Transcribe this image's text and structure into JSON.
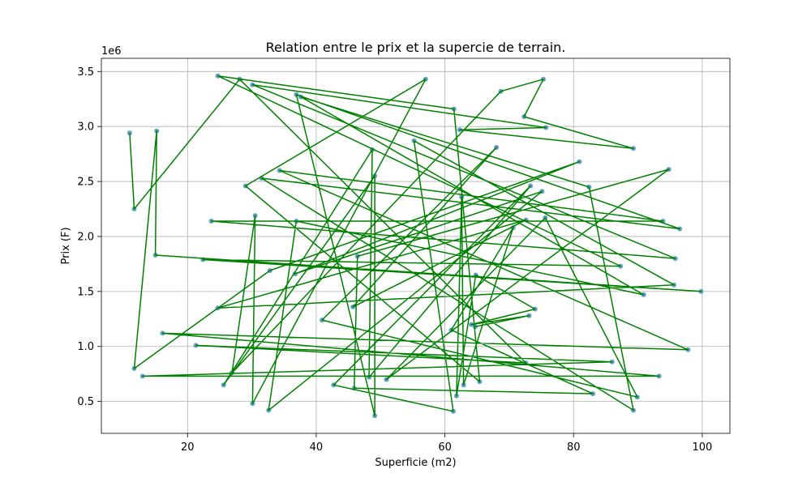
{
  "chart_data": {
    "type": "line",
    "title": "Relation entre le prix et la supercie de terrain.",
    "xlabel": "Superficie (m2)",
    "ylabel": "Prix (F)",
    "y_offset_label": "1e6",
    "xlim": [
      6.6,
      104.3
    ],
    "ylim": [
      210000,
      3620000
    ],
    "xticks": [
      20,
      40,
      60,
      80,
      100
    ],
    "xtick_labels": [
      "20",
      "40",
      "60",
      "80",
      "100"
    ],
    "yticks": [
      500000,
      1000000,
      1500000,
      2000000,
      2500000,
      3000000,
      3500000
    ],
    "ytick_labels": [
      "0.5",
      "1.0",
      "1.5",
      "2.0",
      "2.5",
      "3.0",
      "3.5"
    ],
    "grid": true,
    "markers": true,
    "line_color": "#008000",
    "marker_color": "#1f77b4",
    "series": [
      {
        "x": [
          11.0,
          11.7,
          28.1,
          72.6,
          21.3,
          86.0,
          13.0,
          93.3,
          16.1,
          97.8,
          34.3,
          93.9,
          23.7,
          95.8,
          30.1,
          75.7,
          62.3,
          89.3,
          72.3,
          75.3,
          68.7,
          26.9,
          30.5,
          30.1,
          57.0,
          29.0,
          65.4,
          61.4,
          24.7,
          87.3,
          22.4,
          99.8,
          15.0,
          15.2,
          11.7,
          32.8,
          80.9,
          36.7,
          75.1,
          32.6,
          36.9,
          90.9,
          37.6,
          82.4,
          89.3,
          31.5,
          96.5,
          36.9,
          49.1,
          49.1,
          25.6,
          48.7,
          48.2,
          73.3,
          42.7,
          61.3,
          55.2,
          95.6,
          24.7,
          72.6,
          45.7,
          68.0,
          40.9,
          89.9,
          75.6,
          50.9,
          94.8,
          46.4,
          45.9,
          83.0,
          61.0,
          70.6,
          62.9,
          62.6,
          61.8,
          64.8,
          74.0,
          64.1,
          73.1,
          64.7
        ],
        "y": [
          2940000,
          2250000,
          3430000,
          850000,
          1010000,
          860000,
          730000,
          730000,
          1120000,
          970000,
          2600000,
          2140000,
          2140000,
          1800000,
          3380000,
          2990000,
          2970000,
          2800000,
          3090000,
          3430000,
          3320000,
          760000,
          2190000,
          480000,
          3430000,
          2460000,
          680000,
          3160000,
          3460000,
          1730000,
          1790000,
          1500000,
          1830000,
          2960000,
          800000,
          1690000,
          2680000,
          1660000,
          2410000,
          420000,
          2140000,
          1470000,
          3270000,
          2450000,
          420000,
          2530000,
          2070000,
          3290000,
          370000,
          2550000,
          650000,
          2790000,
          720000,
          2460000,
          650000,
          410000,
          2870000,
          1560000,
          1350000,
          2150000,
          1360000,
          2810000,
          1240000,
          540000,
          2170000,
          700000,
          2610000,
          1820000,
          620000,
          570000,
          1150000,
          2080000,
          650000,
          2360000,
          550000,
          1650000,
          1340000,
          1200000,
          1280000,
          1180000
        ]
      }
    ]
  }
}
